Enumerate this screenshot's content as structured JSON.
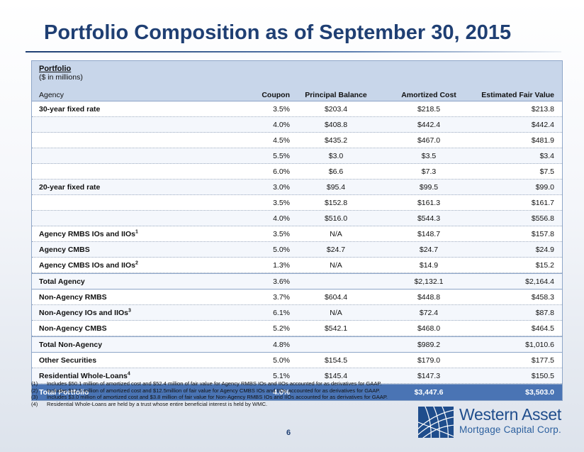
{
  "title": "Portfolio Composition as of September 30, 2015",
  "table": {
    "caption": "Portfolio",
    "units": "($ in millions)",
    "headers": [
      "Agency",
      "Coupon",
      "Principal Balance",
      "Amortized Cost",
      "Estimated Fair Value"
    ],
    "rows": [
      {
        "label": "30-year fixed rate",
        "sup": "",
        "coupon": "3.5%",
        "principal": "$203.4",
        "amortized": "$218.5",
        "fair": "$213.8"
      },
      {
        "label": "",
        "sup": "",
        "coupon": "4.0%",
        "principal": "$408.8",
        "amortized": "$442.4",
        "fair": "$442.4"
      },
      {
        "label": "",
        "sup": "",
        "coupon": "4.5%",
        "principal": "$435.2",
        "amortized": "$467.0",
        "fair": "$481.9"
      },
      {
        "label": "",
        "sup": "",
        "coupon": "5.5%",
        "principal": "$3.0",
        "amortized": "$3.5",
        "fair": "$3.4"
      },
      {
        "label": "",
        "sup": "",
        "coupon": "6.0%",
        "principal": "$6.6",
        "amortized": "$7.3",
        "fair": "$7.5"
      },
      {
        "label": "20-year fixed rate",
        "sup": "",
        "coupon": "3.0%",
        "principal": "$95.4",
        "amortized": "$99.5",
        "fair": "$99.0"
      },
      {
        "label": "",
        "sup": "",
        "coupon": "3.5%",
        "principal": "$152.8",
        "amortized": "$161.3",
        "fair": "$161.7"
      },
      {
        "label": "",
        "sup": "",
        "coupon": "4.0%",
        "principal": "$516.0",
        "amortized": "$544.3",
        "fair": "$556.8"
      },
      {
        "label": "Agency RMBS IOs and IIOs",
        "sup": "1",
        "coupon": "3.5%",
        "principal": "N/A",
        "amortized": "$148.7",
        "fair": "$157.8"
      },
      {
        "label": "Agency CMBS",
        "sup": "",
        "coupon": "5.0%",
        "principal": "$24.7",
        "amortized": "$24.7",
        "fair": "$24.9"
      },
      {
        "label": "Agency CMBS IOs and IIOs",
        "sup": "2",
        "coupon": "1.3%",
        "principal": "N/A",
        "amortized": "$14.9",
        "fair": "$15.2"
      },
      {
        "label": "Total Agency",
        "sup": "",
        "coupon": "3.6%",
        "principal": "",
        "amortized": "$2,132.1",
        "fair": "$2,164.4"
      },
      {
        "label": "Non-Agency RMBS",
        "sup": "",
        "coupon": "3.7%",
        "principal": "$604.4",
        "amortized": "$448.8",
        "fair": "$458.3"
      },
      {
        "label": "Non-Agency IOs and IIOs",
        "sup": "3",
        "coupon": "6.1%",
        "principal": "N/A",
        "amortized": "$72.4",
        "fair": "$87.8"
      },
      {
        "label": "Non-Agency CMBS",
        "sup": "",
        "coupon": "5.2%",
        "principal": "$542.1",
        "amortized": "$468.0",
        "fair": "$464.5"
      },
      {
        "label": "Total Non-Agency",
        "sup": "",
        "coupon": "4.8%",
        "principal": "",
        "amortized": "$989.2",
        "fair": "$1,010.6"
      },
      {
        "label": "Other Securities",
        "sup": "",
        "coupon": "5.0%",
        "principal": "$154.5",
        "amortized": "$179.0",
        "fair": "$177.5"
      },
      {
        "label": "Residential Whole-Loans",
        "sup": "4",
        "coupon": "5.1%",
        "principal": "$145.4",
        "amortized": "$147.3",
        "fair": "$150.5"
      },
      {
        "label": "Total Portfolio",
        "sup": "",
        "coupon": "4.0%",
        "principal": "",
        "amortized": "$3,447.6",
        "fair": "$3,503.0"
      }
    ]
  },
  "footnotes": [
    {
      "num": "(1)",
      "text": "Includes $50.1 million of amortized cost and $52.4 million of fair value for Agency RMBS IOs and IIOs accounted for as derivatives for GAAP."
    },
    {
      "num": "(2)",
      "text": "Includes $12.5 million of amortized cost and $12.5million of fair value for Agency CMBS IOs and IIOs accounted for as derivatives for GAAP."
    },
    {
      "num": "(3)",
      "text": "Includes $3.0 million of amortized cost and $3.8 million of fair value for Non-Agency RMBS IOs and IIOs accounted for as derivatives for GAAP."
    },
    {
      "num": "(4)",
      "text": "Residential Whole-Loans are held by a trust whose entire beneficial interest is held by WMC."
    }
  ],
  "page_number": "6",
  "logo": {
    "name": "Western Asset",
    "subtitle": "Mortgage Capital Corp.",
    "color": "#1f4d8c"
  }
}
